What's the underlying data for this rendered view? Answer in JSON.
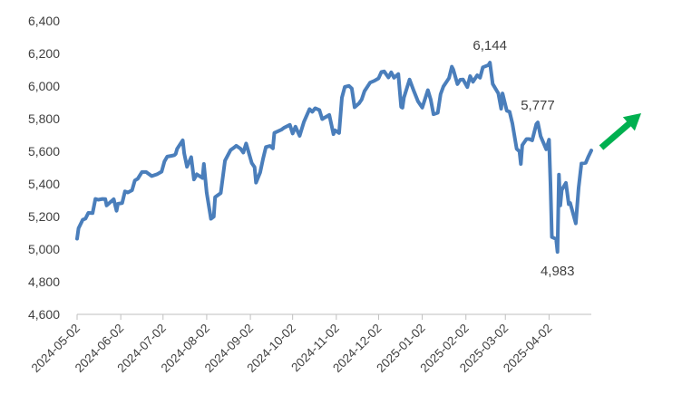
{
  "chart_data": {
    "type": "line",
    "title": "",
    "xlabel": "",
    "ylabel": "",
    "ylim": [
      4600,
      6400
    ],
    "y_ticks": [
      "4,600",
      "4,800",
      "5,000",
      "5,200",
      "5,400",
      "5,600",
      "5,800",
      "6,000",
      "6,200",
      "6,400"
    ],
    "x_ticks": [
      "2024-05-02",
      "2024-06-02",
      "2024-07-02",
      "2024-08-02",
      "2024-09-02",
      "2024-10-02",
      "2024-11-02",
      "2024-12-02",
      "2025-01-02",
      "2025-02-02",
      "2025-03-02",
      "2025-04-02"
    ],
    "x_range": [
      "2024-05-02",
      "2025-05-02"
    ],
    "grid": false,
    "legend": "none",
    "annotations": [
      {
        "text": "6,144",
        "x": "2025-02-19",
        "y": 6144,
        "position": "above"
      },
      {
        "text": "5,777",
        "x": "2025-03-25",
        "y": 5777,
        "position": "above"
      },
      {
        "text": "4,983",
        "x": "2025-04-08",
        "y": 4983,
        "position": "below"
      }
    ],
    "arrow": {
      "color": "#00b050",
      "direction": "up-right"
    },
    "series_color": "#4a7ebb",
    "series": [
      {
        "x": [
          "2024-05-02",
          "2024-05-03",
          "2024-05-06",
          "2024-05-08",
          "2024-05-10",
          "2024-05-13",
          "2024-05-15",
          "2024-05-17",
          "2024-05-20",
          "2024-05-22",
          "2024-05-23",
          "2024-05-28",
          "2024-05-30",
          "2024-05-31",
          "2024-06-03",
          "2024-06-05",
          "2024-06-07",
          "2024-06-10",
          "2024-06-12",
          "2024-06-14",
          "2024-06-17",
          "2024-06-20",
          "2024-06-24",
          "2024-06-28",
          "2024-07-01",
          "2024-07-03",
          "2024-07-05",
          "2024-07-08",
          "2024-07-10",
          "2024-07-11",
          "2024-07-12",
          "2024-07-16",
          "2024-07-17",
          "2024-07-19",
          "2024-07-22",
          "2024-07-24",
          "2024-07-26",
          "2024-07-30",
          "2024-07-31",
          "2024-08-02",
          "2024-08-05",
          "2024-08-07",
          "2024-08-08",
          "2024-08-12",
          "2024-08-15",
          "2024-08-19",
          "2024-08-21",
          "2024-08-23",
          "2024-08-26",
          "2024-08-28",
          "2024-08-30",
          "2024-09-03",
          "2024-09-05",
          "2024-09-06",
          "2024-09-09",
          "2024-09-11",
          "2024-09-13",
          "2024-09-16",
          "2024-09-18",
          "2024-09-19",
          "2024-09-24",
          "2024-09-26",
          "2024-09-30",
          "2024-10-02",
          "2024-10-04",
          "2024-10-07",
          "2024-10-10",
          "2024-10-14",
          "2024-10-16",
          "2024-10-18",
          "2024-10-21",
          "2024-10-23",
          "2024-10-25",
          "2024-10-28",
          "2024-10-31",
          "2024-11-01",
          "2024-11-04",
          "2024-11-06",
          "2024-11-08",
          "2024-11-11",
          "2024-11-13",
          "2024-11-15",
          "2024-11-18",
          "2024-11-20",
          "2024-11-22",
          "2024-11-26",
          "2024-11-29",
          "2024-12-02",
          "2024-12-04",
          "2024-12-06",
          "2024-12-09",
          "2024-12-11",
          "2024-12-13",
          "2024-12-16",
          "2024-12-18",
          "2024-12-19",
          "2024-12-20",
          "2024-12-24",
          "2024-12-27",
          "2024-12-30",
          "2025-01-02",
          "2025-01-06",
          "2025-01-08",
          "2025-01-10",
          "2025-01-13",
          "2025-01-15",
          "2025-01-17",
          "2025-01-21",
          "2025-01-23",
          "2025-01-24",
          "2025-01-27",
          "2025-01-29",
          "2025-01-31",
          "2025-02-03",
          "2025-02-05",
          "2025-02-07",
          "2025-02-10",
          "2025-02-12",
          "2025-02-14",
          "2025-02-18",
          "2025-02-19",
          "2025-02-21",
          "2025-02-25",
          "2025-02-27",
          "2025-02-28",
          "2025-03-03",
          "2025-03-05",
          "2025-03-07",
          "2025-03-10",
          "2025-03-12",
          "2025-03-13",
          "2025-03-14",
          "2025-03-17",
          "2025-03-19",
          "2025-03-21",
          "2025-03-24",
          "2025-03-25",
          "2025-03-27",
          "2025-03-31",
          "2025-04-02",
          "2025-04-03",
          "2025-04-04",
          "2025-04-07",
          "2025-04-08",
          "2025-04-09",
          "2025-04-10",
          "2025-04-11",
          "2025-04-14",
          "2025-04-16",
          "2025-04-17",
          "2025-04-21",
          "2025-04-23",
          "2025-04-25",
          "2025-04-28",
          "2025-04-30",
          "2025-05-02"
        ],
        "values": [
          5064,
          5128,
          5180,
          5187,
          5222,
          5221,
          5308,
          5303,
          5308,
          5307,
          5268,
          5306,
          5235,
          5278,
          5283,
          5354,
          5347,
          5361,
          5421,
          5431,
          5473,
          5473,
          5448,
          5460,
          5475,
          5537,
          5567,
          5572,
          5576,
          5584,
          5615,
          5667,
          5588,
          5505,
          5564,
          5427,
          5459,
          5436,
          5522,
          5346,
          5186,
          5199,
          5319,
          5344,
          5543,
          5608,
          5620,
          5634,
          5616,
          5592,
          5648,
          5528,
          5503,
          5408,
          5471,
          5555,
          5626,
          5633,
          5618,
          5713,
          5732,
          5745,
          5762,
          5709,
          5751,
          5695,
          5780,
          5859,
          5842,
          5864,
          5853,
          5797,
          5808,
          5823,
          5705,
          5729,
          5712,
          5929,
          5995,
          6001,
          5985,
          5870,
          5893,
          5917,
          5969,
          6021,
          6032,
          6047,
          6086,
          6090,
          6053,
          6084,
          6051,
          6074,
          5872,
          5867,
          5930,
          6040,
          5970,
          5906,
          5868,
          5975,
          5918,
          5827,
          5836,
          5950,
          5997,
          6049,
          6119,
          6101,
          6012,
          6039,
          6040,
          5994,
          6061,
          6026,
          6066,
          6051,
          6115,
          6129,
          6144,
          6013,
          5955,
          5861,
          5955,
          5849,
          5842,
          5770,
          5615,
          5599,
          5522,
          5638,
          5675,
          5675,
          5667,
          5767,
          5777,
          5693,
          5612,
          5671,
          5397,
          5074,
          5062,
          4983,
          5457,
          5268,
          5363,
          5406,
          5276,
          5283,
          5158,
          5376,
          5525,
          5529,
          5569,
          5605
        ]
      }
    ]
  }
}
